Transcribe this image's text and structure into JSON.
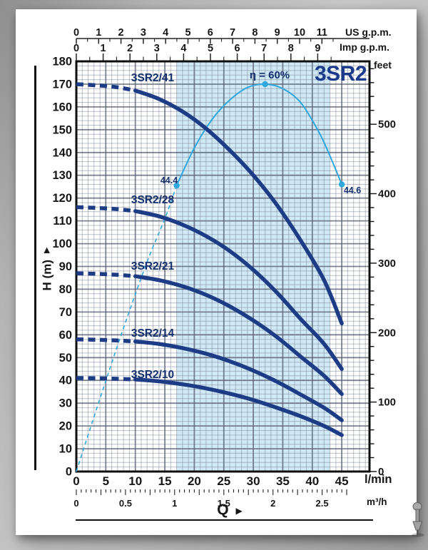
{
  "colors": {
    "curve_navy": "#1d3c85",
    "label_navy": "#16316f",
    "title_navy": "#1c3a8c",
    "efficiency_blue": "#2fa8de",
    "band_fill": "#cfe9f6",
    "grid_minor": "rgba(122,132,148,0.50)",
    "grid_major": "rgba(88,98,114,0.78)",
    "frame": "#0f0f0f",
    "tick_text": "#161616"
  },
  "axes": {
    "head_m": {
      "label": "H (m)",
      "min": 0,
      "max": 180,
      "major_step": 10,
      "minor_step": 2,
      "tick_labels": [
        0,
        10,
        20,
        30,
        40,
        50,
        60,
        70,
        80,
        90,
        100,
        110,
        120,
        130,
        140,
        150,
        160,
        170,
        180
      ]
    },
    "flow_lmin": {
      "label": "l/min",
      "min": 0,
      "max": 45,
      "major_step": 5,
      "minor_step": 1,
      "tick_labels": [
        0,
        5,
        10,
        15,
        20,
        25,
        30,
        35,
        40,
        45
      ]
    },
    "feet": {
      "label": "feet",
      "major_step": 100,
      "minor_step": 20,
      "max": 580,
      "m_per_foot": 0.3048,
      "tick_labels": [
        0,
        100,
        200,
        300,
        400,
        500
      ]
    },
    "us_gpm": {
      "label": "US g.p.m.",
      "minor_step": 0.5,
      "max": 11.5,
      "lmin_per_unit": 3.785,
      "tick_labels": [
        0,
        1,
        2,
        3,
        4,
        5,
        6,
        7,
        8,
        9,
        10,
        11
      ]
    },
    "imp_gpm": {
      "label": "Imp g.p.m.",
      "minor_step": 0.5,
      "max": 9.5,
      "lmin_per_unit": 4.546,
      "tick_labels": [
        0,
        1,
        2,
        3,
        4,
        5,
        6,
        7,
        8,
        9
      ]
    },
    "m3h": {
      "label": "m³/h",
      "minor_step": 0.05,
      "mid_step": 0.25,
      "max": 2.75,
      "lmin_per_unit": 16.6667,
      "tick_labels": [
        "0",
        "0.5",
        "1",
        "1.5",
        "2",
        "2.5"
      ],
      "tick_values": [
        0,
        0.5,
        1,
        1.5,
        2,
        2.5
      ]
    },
    "q_label": "Q",
    "q_arrow": "▶",
    "h_arrow": "▶"
  },
  "operating_band": {
    "q_start": 17,
    "q_end": 43
  },
  "chart_data": {
    "type": "line",
    "title": "3SR2",
    "x_unit": "l/min",
    "y_unit": "m",
    "xlim": [
      0,
      49.7
    ],
    "ylim": [
      0,
      180
    ],
    "series": [
      {
        "name": "3SR2/41",
        "label_h": 172.5,
        "dashed": [
          [
            0,
            170
          ],
          [
            4,
            169.4
          ],
          [
            7,
            168.6
          ],
          [
            10,
            167.2
          ]
        ],
        "solid": [
          [
            10,
            167.2
          ],
          [
            14,
            163.5
          ],
          [
            18,
            158
          ],
          [
            22,
            150.5
          ],
          [
            26,
            141
          ],
          [
            30,
            130
          ],
          [
            34,
            117
          ],
          [
            38,
            101.5
          ],
          [
            42,
            84
          ],
          [
            45,
            65
          ]
        ]
      },
      {
        "name": "3SR2/28",
        "label_h": 119,
        "dashed": [
          [
            0,
            116
          ],
          [
            4,
            115.6
          ],
          [
            7,
            115.1
          ],
          [
            10,
            114.3
          ]
        ],
        "solid": [
          [
            10,
            114.3
          ],
          [
            14,
            112
          ],
          [
            18,
            108.3
          ],
          [
            22,
            103.3
          ],
          [
            26,
            96.8
          ],
          [
            30,
            88.5
          ],
          [
            34,
            78.5
          ],
          [
            38,
            67
          ],
          [
            42,
            56
          ],
          [
            45,
            45
          ]
        ]
      },
      {
        "name": "3SR2/21",
        "label_h": 90,
        "dashed": [
          [
            0,
            87
          ],
          [
            4,
            86.7
          ],
          [
            7,
            86.3
          ],
          [
            10,
            85.7
          ]
        ],
        "solid": [
          [
            10,
            85.7
          ],
          [
            14,
            84
          ],
          [
            18,
            81.3
          ],
          [
            22,
            77.5
          ],
          [
            26,
            72.5
          ],
          [
            30,
            66.3
          ],
          [
            34,
            59
          ],
          [
            38,
            50.5
          ],
          [
            42,
            42
          ],
          [
            45,
            34
          ]
        ]
      },
      {
        "name": "3SR2/14",
        "label_h": 60.5,
        "dashed": [
          [
            0,
            58
          ],
          [
            4,
            57.8
          ],
          [
            7,
            57.5
          ],
          [
            10,
            57.1
          ]
        ],
        "solid": [
          [
            10,
            57.1
          ],
          [
            14,
            56
          ],
          [
            18,
            54.2
          ],
          [
            22,
            51.7
          ],
          [
            26,
            48.4
          ],
          [
            30,
            44.3
          ],
          [
            34,
            39.4
          ],
          [
            38,
            33.8
          ],
          [
            42,
            28
          ],
          [
            45,
            22.5
          ]
        ]
      },
      {
        "name": "3SR2/10",
        "label_h": 42.3,
        "dashed": [
          [
            0,
            41
          ],
          [
            4,
            40.9
          ],
          [
            7,
            40.7
          ],
          [
            10,
            40.4
          ]
        ],
        "solid": [
          [
            10,
            40.4
          ],
          [
            14,
            39.6
          ],
          [
            18,
            38.3
          ],
          [
            22,
            36.5
          ],
          [
            26,
            34.2
          ],
          [
            30,
            31.4
          ],
          [
            34,
            28
          ],
          [
            38,
            24.3
          ],
          [
            42,
            20
          ],
          [
            45,
            16
          ]
        ]
      }
    ],
    "efficiency": {
      "name": "efficiency-curve",
      "dashed": [
        [
          0,
          0
        ],
        [
          4,
          32
        ],
        [
          8,
          63
        ],
        [
          12,
          92
        ],
        [
          15,
          111
        ],
        [
          17,
          125.5
        ]
      ],
      "solid": [
        [
          17,
          125.5
        ],
        [
          20,
          142
        ],
        [
          23,
          154.5
        ],
        [
          26,
          163
        ],
        [
          29,
          168.5
        ],
        [
          32,
          170
        ],
        [
          35,
          168
        ],
        [
          38,
          162
        ],
        [
          41,
          149.5
        ],
        [
          43,
          138.5
        ],
        [
          45,
          126
        ]
      ],
      "markers": [
        {
          "q": 17,
          "h": 125.5,
          "label": "44.4"
        },
        {
          "q": 32,
          "h": 170,
          "label": "η = 60%"
        },
        {
          "q": 45,
          "h": 126,
          "label": "44.6"
        }
      ]
    }
  }
}
